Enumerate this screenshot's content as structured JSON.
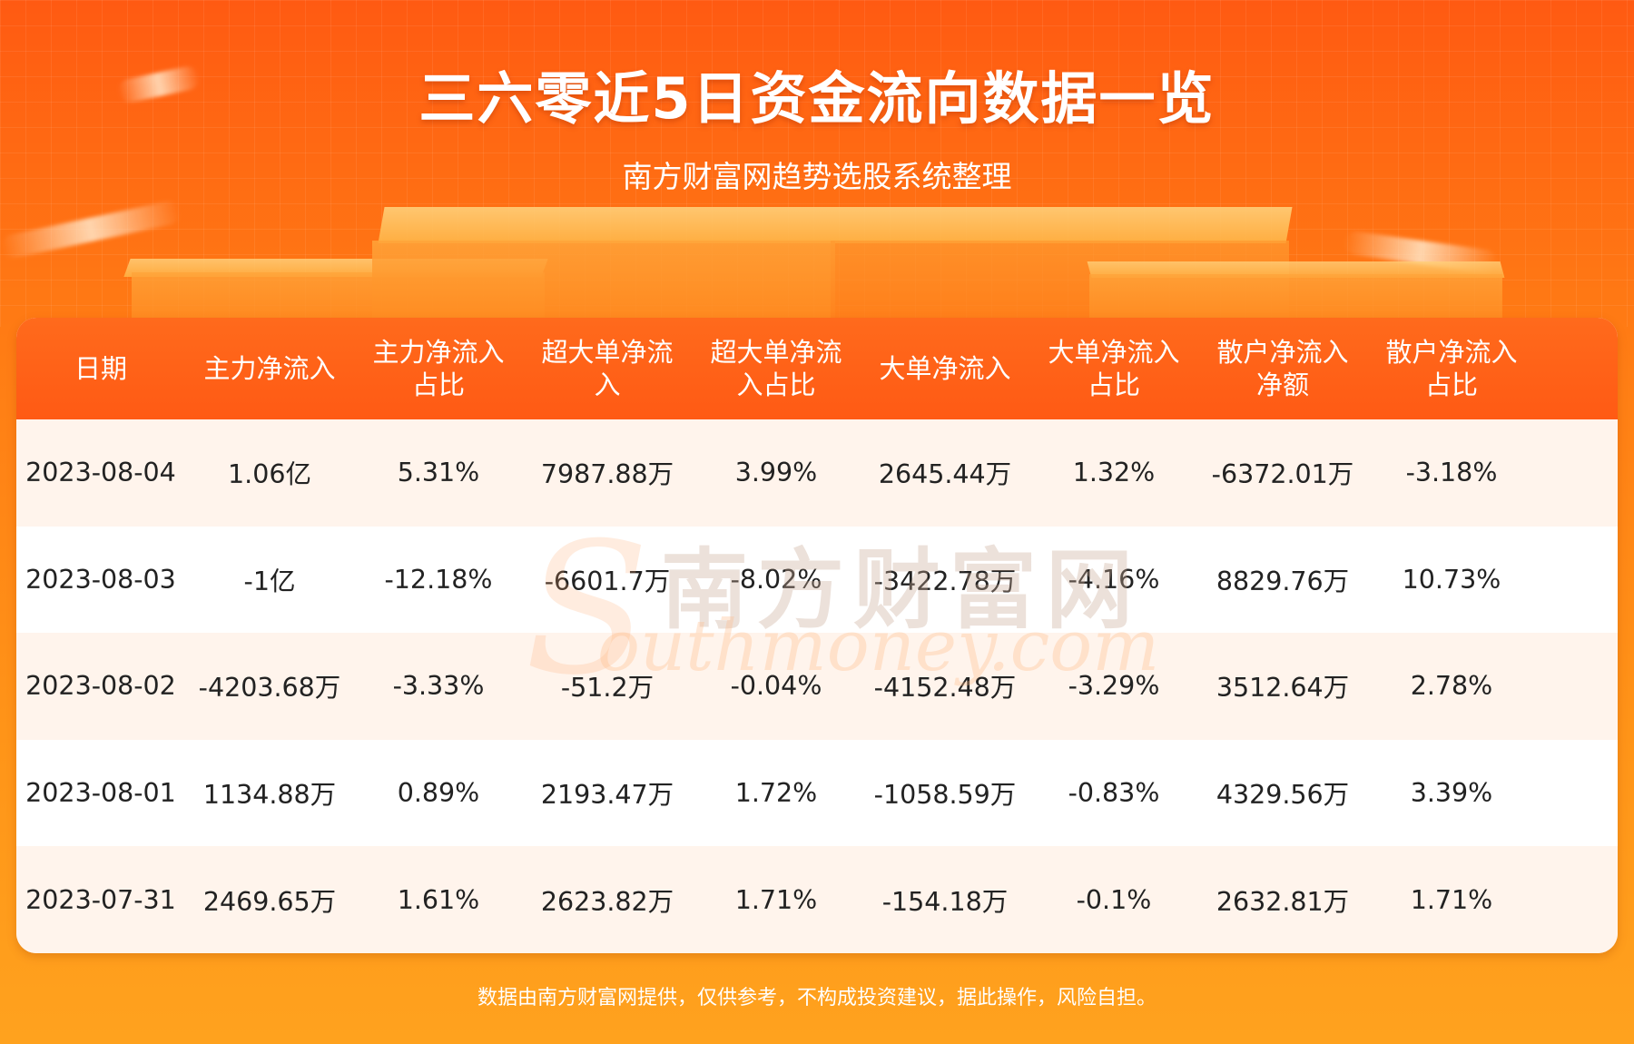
{
  "header": {
    "title": "三六零近5日资金流向数据一览",
    "subtitle": "南方财富网趋势选股系统整理"
  },
  "table": {
    "columns": [
      "日期",
      "主力净流入",
      "主力净流入\n占比",
      "超大单净流\n入",
      "超大单净流\n入占比",
      "大单净流入",
      "大单净流入\n占比",
      "散户净流入\n净额",
      "散户净流入\n占比"
    ],
    "rows": [
      [
        "2023-08-04",
        "1.06亿",
        "5.31%",
        "7987.88万",
        "3.99%",
        "2645.44万",
        "1.32%",
        "-6372.01万",
        "-3.18%"
      ],
      [
        "2023-08-03",
        "-1亿",
        "-12.18%",
        "-6601.7万",
        "-8.02%",
        "-3422.78万",
        "-4.16%",
        "8829.76万",
        "10.73%"
      ],
      [
        "2023-08-02",
        "-4203.68万",
        "-3.33%",
        "-51.2万",
        "-0.04%",
        "-4152.48万",
        "-3.29%",
        "3512.64万",
        "2.78%"
      ],
      [
        "2023-08-01",
        "1134.88万",
        "0.89%",
        "2193.47万",
        "1.72%",
        "-1058.59万",
        "-0.83%",
        "4329.56万",
        "3.39%"
      ],
      [
        "2023-07-31",
        "2469.65万",
        "1.61%",
        "2623.82万",
        "1.71%",
        "-154.18万",
        "-0.1%",
        "2632.81万",
        "1.71%"
      ]
    ]
  },
  "watermark": {
    "cn": "南方财富网",
    "en": "outhmoney.com",
    "initial": "S"
  },
  "footer": {
    "disclaimer": "数据由南方财富网提供，仅供参考，不构成投资建议，据此操作，风险自担。"
  },
  "colors": {
    "header_bg": "#ff5a14",
    "row_alt": "#fff4ec",
    "accent": "#ff7a14"
  }
}
